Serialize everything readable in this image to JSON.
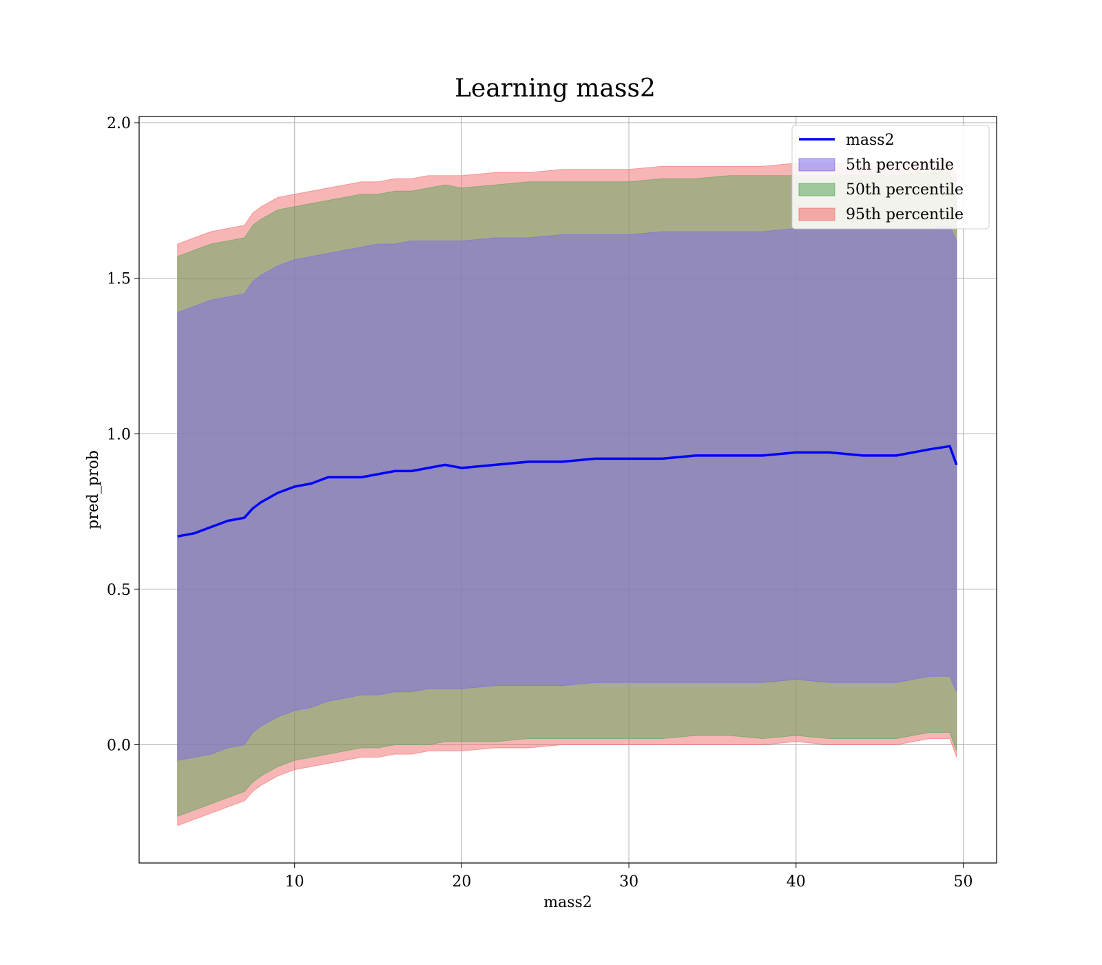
{
  "chart_data": {
    "type": "area",
    "title": "Learning mass2",
    "xlabel": "mass2",
    "ylabel": "pred_prob",
    "xlim": [
      0.7,
      52
    ],
    "ylim": [
      -0.38,
      2.02
    ],
    "xticks": [
      10,
      20,
      30,
      40,
      50
    ],
    "yticks": [
      0.0,
      0.5,
      1.0,
      1.5,
      2.0
    ],
    "ytick_labels": [
      "0.0",
      "0.5",
      "1.0",
      "1.5",
      "2.0"
    ],
    "grid": true,
    "legend_position": "top-right",
    "x": [
      3,
      4,
      5,
      6,
      7,
      7.5,
      8,
      9,
      10,
      11,
      12,
      13,
      14,
      15,
      16,
      17,
      18,
      19,
      20,
      22,
      24,
      26,
      28,
      30,
      32,
      34,
      36,
      38,
      40,
      42,
      44,
      46,
      48,
      49.2,
      49.6
    ],
    "series": [
      {
        "name": "mass2",
        "kind": "line",
        "color": "#0000ff",
        "values": [
          0.67,
          0.68,
          0.7,
          0.72,
          0.73,
          0.76,
          0.78,
          0.81,
          0.83,
          0.84,
          0.86,
          0.86,
          0.86,
          0.87,
          0.88,
          0.88,
          0.89,
          0.9,
          0.89,
          0.9,
          0.91,
          0.91,
          0.92,
          0.92,
          0.92,
          0.93,
          0.93,
          0.93,
          0.94,
          0.94,
          0.93,
          0.93,
          0.95,
          0.96,
          0.9
        ]
      },
      {
        "name": "5th percentile",
        "kind": "band",
        "color": "#7b68ee",
        "lower": [
          -0.05,
          -0.04,
          -0.03,
          -0.01,
          0.0,
          0.04,
          0.06,
          0.09,
          0.11,
          0.12,
          0.14,
          0.15,
          0.16,
          0.16,
          0.17,
          0.17,
          0.18,
          0.18,
          0.18,
          0.19,
          0.19,
          0.19,
          0.2,
          0.2,
          0.2,
          0.2,
          0.2,
          0.2,
          0.21,
          0.2,
          0.2,
          0.2,
          0.22,
          0.22,
          0.17
        ],
        "upper": [
          1.39,
          1.41,
          1.43,
          1.44,
          1.45,
          1.49,
          1.51,
          1.54,
          1.56,
          1.57,
          1.58,
          1.59,
          1.6,
          1.61,
          1.61,
          1.62,
          1.62,
          1.62,
          1.62,
          1.63,
          1.63,
          1.64,
          1.64,
          1.64,
          1.65,
          1.65,
          1.65,
          1.65,
          1.66,
          1.66,
          1.66,
          1.66,
          1.66,
          1.67,
          1.62
        ]
      },
      {
        "name": "50th percentile",
        "kind": "band",
        "color": "#5aa55a",
        "lower": [
          -0.23,
          -0.21,
          -0.19,
          -0.17,
          -0.15,
          -0.12,
          -0.1,
          -0.07,
          -0.05,
          -0.04,
          -0.03,
          -0.02,
          -0.01,
          -0.01,
          0.0,
          0.0,
          0.0,
          0.01,
          0.01,
          0.01,
          0.02,
          0.02,
          0.02,
          0.02,
          0.02,
          0.03,
          0.03,
          0.02,
          0.03,
          0.02,
          0.02,
          0.02,
          0.04,
          0.04,
          -0.02
        ],
        "upper": [
          1.57,
          1.59,
          1.61,
          1.62,
          1.63,
          1.67,
          1.69,
          1.72,
          1.73,
          1.74,
          1.75,
          1.76,
          1.77,
          1.77,
          1.78,
          1.78,
          1.79,
          1.8,
          1.79,
          1.8,
          1.81,
          1.81,
          1.81,
          1.81,
          1.82,
          1.82,
          1.83,
          1.83,
          1.83,
          1.83,
          1.83,
          1.83,
          1.84,
          1.84,
          1.78
        ]
      },
      {
        "name": "95th percentile",
        "kind": "band",
        "color": "#f26b6b",
        "lower": [
          -0.26,
          -0.24,
          -0.22,
          -0.2,
          -0.18,
          -0.15,
          -0.13,
          -0.1,
          -0.08,
          -0.07,
          -0.06,
          -0.05,
          -0.04,
          -0.04,
          -0.03,
          -0.03,
          -0.02,
          -0.02,
          -0.02,
          -0.01,
          -0.01,
          0.0,
          0.0,
          0.0,
          0.0,
          0.0,
          0.0,
          0.0,
          0.01,
          0.0,
          0.0,
          0.0,
          0.02,
          0.02,
          -0.04
        ],
        "upper": [
          1.61,
          1.63,
          1.65,
          1.66,
          1.67,
          1.71,
          1.73,
          1.76,
          1.77,
          1.78,
          1.79,
          1.8,
          1.81,
          1.81,
          1.82,
          1.82,
          1.83,
          1.83,
          1.83,
          1.84,
          1.84,
          1.85,
          1.85,
          1.85,
          1.86,
          1.86,
          1.86,
          1.86,
          1.87,
          1.87,
          1.87,
          1.87,
          1.88,
          1.88,
          1.83
        ]
      }
    ]
  }
}
